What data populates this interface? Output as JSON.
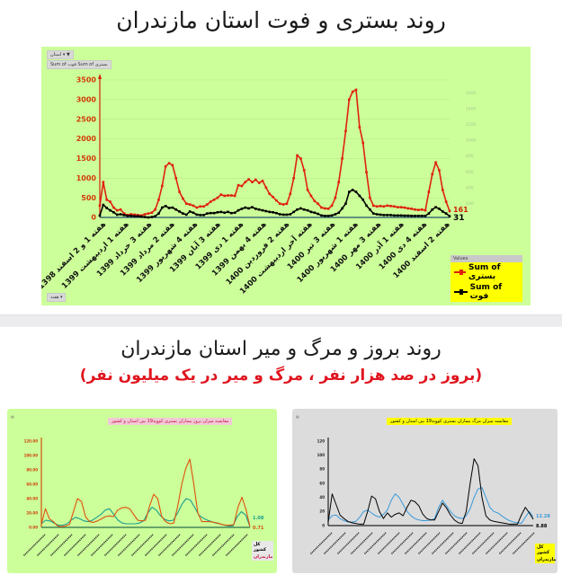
{
  "top": {
    "title": "روند بستری و فوت استان مازندران",
    "filter_button": "استان ▾ ▼",
    "field_buttons": "Sum of فوت   Sum of بستری",
    "axis_button": "هفته ▾",
    "legend_header": "Values",
    "end_labels": {
      "hospitalized": "161",
      "deaths": "31"
    }
  },
  "bottom": {
    "title": "روند بروز و مرگ و میر استان مازندران",
    "subtitle": "(بروز در صد هزار نفر ، مرگ و میر در یک میلیون نفر)",
    "left_chart": {
      "title": "مقایسه میزان بروز بیماران بستری کووید19 بین استان و کشور",
      "end_labels": {
        "country": "1.08",
        "province": "0.71"
      },
      "legend": [
        "کل کشور",
        "مازندران"
      ]
    },
    "right_chart": {
      "title": "مقایسه میزان مرگ بیماران بستری کووید19 بین استان و کشور",
      "end_labels": {
        "country": "12.28",
        "province": "8.88"
      },
      "legend": [
        "کل کشور",
        "مازندران"
      ]
    }
  },
  "colors": {
    "green_panel": "#ccff99",
    "gray_panel": "#d9d9d9",
    "red_series": "#e0200f",
    "black_series": "#000000",
    "teal_series": "#1a9e8f",
    "orange_series": "#e0500f",
    "blue_series": "#3a9ad9",
    "legend_bg": "#ffff00",
    "subtitle_red": "#e0141e"
  },
  "chart_data": [
    {
      "type": "line",
      "title": "روند بستری و فوت استان مازندران",
      "xlabel": "هفته",
      "ylabel": "",
      "ylim": [
        0,
        3500
      ],
      "y_ticks": [
        0,
        500,
        1000,
        1500,
        2000,
        2500,
        3000,
        3500
      ],
      "secondary_y_ticks": [
        200,
        400,
        600,
        800,
        1000,
        1200,
        1400,
        1600
      ],
      "grid": true,
      "legend_position": "bottom-right",
      "x_tick_labels": [
        "هفته 1 و 2 اسفند 1398",
        "هفته 1 اردیبهشت 1399",
        "هفته 3 خرداد 1399",
        "هفته 2 مرداد 1399",
        "هفته 4 شهریور 1399",
        "هفته 3 آبان 1399",
        "هفته 1 دی 1399",
        "هفته 4 بهمن 1399",
        "هفته 2 فروردین 1400",
        "هفته آخر اردیبهشت 1400",
        "هفته 3 تیر 1400",
        "هفته 1 شهریور 1400",
        "هفته 3 مهر 1400",
        "هفته 1 آذر 1400",
        "هفته 4 دی 1400",
        "هفته 2 اسفند 1400"
      ],
      "series": [
        {
          "name": "Sum of بستری",
          "color": "#e0200f",
          "values": [
            300,
            900,
            450,
            400,
            250,
            180,
            200,
            100,
            60,
            80,
            70,
            60,
            50,
            80,
            100,
            120,
            200,
            450,
            800,
            1300,
            1380,
            1330,
            1000,
            650,
            480,
            350,
            330,
            300,
            250,
            280,
            280,
            330,
            400,
            450,
            500,
            580,
            550,
            560,
            560,
            550,
            820,
            800,
            900,
            970,
            900,
            960,
            880,
            930,
            760,
            600,
            520,
            430,
            350,
            330,
            350,
            600,
            1000,
            1580,
            1500,
            1200,
            700,
            550,
            420,
            350,
            250,
            230,
            220,
            300,
            500,
            900,
            1500,
            2200,
            3000,
            3200,
            3250,
            2300,
            1900,
            1150,
            500,
            300,
            280,
            290,
            280,
            300,
            290,
            280,
            260,
            260,
            250,
            230,
            220,
            200,
            190,
            200,
            180,
            650,
            1100,
            1400,
            1200,
            700,
            400,
            161
          ]
        },
        {
          "name": "Sum of فوت",
          "color": "#000000",
          "values": [
            50,
            320,
            240,
            180,
            130,
            70,
            80,
            60,
            40,
            40,
            30,
            30,
            20,
            10,
            0,
            10,
            30,
            100,
            250,
            290,
            240,
            250,
            200,
            150,
            100,
            70,
            150,
            120,
            70,
            60,
            60,
            100,
            110,
            110,
            130,
            140,
            120,
            140,
            110,
            120,
            180,
            220,
            250,
            230,
            260,
            220,
            200,
            180,
            160,
            140,
            130,
            110,
            80,
            70,
            70,
            80,
            140,
            200,
            230,
            200,
            180,
            140,
            120,
            90,
            50,
            40,
            40,
            50,
            80,
            120,
            230,
            350,
            650,
            700,
            650,
            550,
            450,
            300,
            200,
            100,
            80,
            70,
            60,
            60,
            60,
            50,
            50,
            50,
            45,
            45,
            40,
            40,
            40,
            40,
            40,
            100,
            200,
            260,
            220,
            150,
            100,
            31
          ]
        }
      ]
    },
    {
      "type": "line",
      "title": "مقایسه میزان بروز بیماران بستری کووید19 بین استان و کشور",
      "ylim": [
        0,
        120
      ],
      "y_ticks": [
        "0.00",
        "20.00",
        "40.00",
        "60.00",
        "80.00",
        "100.00",
        "120.00"
      ],
      "legend_position": "bottom-right",
      "series": [
        {
          "name": "کل کشور",
          "color": "#1a9e8f",
          "values": [
            5,
            10,
            9,
            6,
            3,
            3,
            5,
            10,
            14,
            12,
            9,
            8,
            10,
            14,
            18,
            24,
            26,
            18,
            10,
            6,
            5,
            5,
            5,
            6,
            9,
            20,
            28,
            24,
            16,
            11,
            9,
            10,
            20,
            32,
            40,
            38,
            28,
            17,
            13,
            10,
            8,
            6,
            5,
            3,
            2,
            2,
            15,
            22,
            17,
            1.08
          ]
        },
        {
          "name": "مازندران",
          "color": "#e0500f",
          "values": [
            4,
            26,
            12,
            8,
            2,
            1,
            2,
            4,
            22,
            40,
            36,
            15,
            8,
            7,
            9,
            12,
            15,
            16,
            15,
            24,
            27,
            28,
            26,
            18,
            10,
            9,
            10,
            30,
            46,
            40,
            15,
            8,
            5,
            6,
            30,
            60,
            82,
            95,
            60,
            20,
            8,
            8,
            8,
            7,
            6,
            4,
            3,
            3,
            4,
            28,
            42,
            25,
            0.71
          ]
        }
      ],
      "end_labels": [
        "1.08",
        "0.71"
      ]
    },
    {
      "type": "line",
      "title": "مقایسه میزان مرگ بیماران بستری کووید19 بین استان و کشور",
      "ylim": [
        0,
        120
      ],
      "y_ticks": [
        0,
        20,
        40,
        60,
        80,
        100,
        120
      ],
      "legend_position": "bottom-right",
      "series": [
        {
          "name": "کل کشور",
          "color": "#3a9ad9",
          "values": [
            8,
            14,
            15,
            10,
            7,
            5,
            5,
            6,
            12,
            20,
            22,
            18,
            14,
            12,
            16,
            22,
            36,
            45,
            40,
            30,
            20,
            14,
            10,
            8,
            7,
            7,
            8,
            10,
            26,
            36,
            28,
            20,
            14,
            11,
            10,
            14,
            24,
            40,
            52,
            54,
            40,
            26,
            20,
            18,
            14,
            10,
            7,
            5,
            4,
            3,
            12,
            20,
            12.28
          ]
        },
        {
          "name": "مازندران",
          "color": "#000000",
          "values": [
            5,
            45,
            30,
            15,
            10,
            6,
            4,
            3,
            2,
            2,
            20,
            42,
            38,
            20,
            10,
            18,
            12,
            16,
            18,
            14,
            26,
            36,
            34,
            28,
            16,
            10,
            8,
            8,
            20,
            32,
            25,
            15,
            8,
            4,
            3,
            20,
            60,
            95,
            85,
            40,
            14,
            8,
            6,
            5,
            4,
            3,
            2,
            2,
            2,
            15,
            26,
            18,
            8.88
          ]
        }
      ],
      "end_labels": [
        "12.28",
        "8.88"
      ]
    }
  ]
}
